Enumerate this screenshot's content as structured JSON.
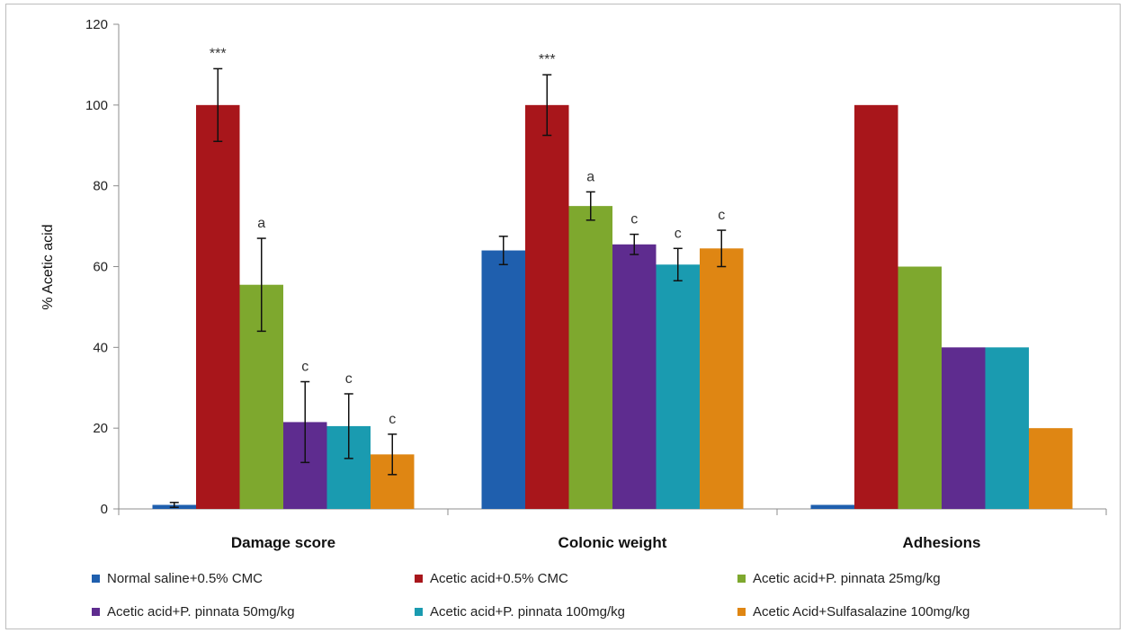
{
  "chart_data": {
    "type": "bar",
    "ylabel": "% Acetic acid",
    "ylim": [
      0,
      120
    ],
    "yticks": [
      0,
      20,
      40,
      60,
      80,
      100,
      120
    ],
    "grid": false,
    "legend_position": "bottom",
    "categories": [
      "Damage score",
      "Colonic weight",
      "Adhesions"
    ],
    "series": [
      {
        "name": "Normal saline+0.5% CMC",
        "color": "#1f5fae",
        "values": [
          1,
          64,
          1
        ],
        "errors": [
          0.6,
          3.5,
          null
        ],
        "annotations": [
          "",
          "",
          ""
        ]
      },
      {
        "name": "Acetic acid+0.5% CMC",
        "color": "#a8161b",
        "values": [
          100,
          100,
          100
        ],
        "errors": [
          9,
          7.5,
          null
        ],
        "annotations": [
          "***",
          "***",
          ""
        ]
      },
      {
        "name": "Acetic acid+P. pinnata 25mg/kg",
        "color": "#7ea82e",
        "values": [
          55.5,
          75,
          60
        ],
        "errors": [
          11.5,
          3.5,
          null
        ],
        "annotations": [
          "a",
          "a",
          ""
        ]
      },
      {
        "name": "Acetic acid+P. pinnata 50mg/kg",
        "color": "#5e2c8f",
        "values": [
          21.5,
          65.5,
          40
        ],
        "errors": [
          10,
          2.5,
          null
        ],
        "annotations": [
          "c",
          "c",
          ""
        ]
      },
      {
        "name": "Acetic acid+P. pinnata 100mg/kg",
        "color": "#1a9bb0",
        "values": [
          20.5,
          60.5,
          40
        ],
        "errors": [
          8,
          4,
          null
        ],
        "annotations": [
          "c",
          "c",
          ""
        ]
      },
      {
        "name": "Acetic Acid+Sulfasalazine 100mg/kg",
        "color": "#df8613",
        "values": [
          13.5,
          64.5,
          20
        ],
        "errors": [
          5,
          4.5,
          null
        ],
        "annotations": [
          "c",
          "c",
          ""
        ]
      }
    ]
  }
}
